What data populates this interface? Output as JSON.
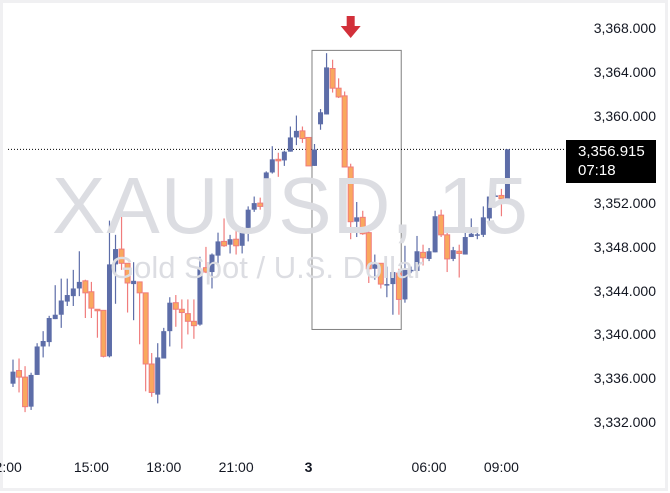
{
  "chart_data": {
    "type": "candlestick",
    "symbol": "XAUUSD, 15",
    "description": "Gold Spot / U.S. Dollar",
    "ylim": [
      3330.5,
      3369.5
    ],
    "y_ticks": [
      {
        "value": 3368,
        "label": "3,368.000"
      },
      {
        "value": 3364,
        "label": "3,364.000"
      },
      {
        "value": 3360,
        "label": "3,360.000"
      },
      {
        "value": 3352,
        "label": "3,352.000"
      },
      {
        "value": 3348,
        "label": "3,348.000"
      },
      {
        "value": 3344,
        "label": "3,344.000"
      },
      {
        "value": 3340,
        "label": "3,340.000"
      },
      {
        "value": 3336,
        "label": "3,336.000"
      },
      {
        "value": 3332,
        "label": "3,332.000"
      }
    ],
    "x_ticks": [
      {
        "index": -0.8,
        "label": "2:00",
        "bold": false
      },
      {
        "index": 13,
        "label": "15:00",
        "bold": false
      },
      {
        "index": 25,
        "label": "18:00",
        "bold": false
      },
      {
        "index": 37,
        "label": "21:00",
        "bold": false
      },
      {
        "index": 49,
        "label": "3",
        "bold": true
      },
      {
        "index": 69,
        "label": "06:00",
        "bold": false
      },
      {
        "index": 81,
        "label": "09:00",
        "bold": false
      }
    ],
    "last_price": {
      "value": 3356.915,
      "label": "3,356.915",
      "countdown": "07:18"
    },
    "colors": {
      "up": "#5d6da8",
      "down_body": "#f9a85e",
      "down_border": "#f07c7c",
      "price_box": "#000000",
      "marker": "#d2303a",
      "watermark": "#dcdde2"
    },
    "highlight_box": {
      "from_index": 49.5,
      "to_index": 64.3,
      "top": 3366.0,
      "bottom": 3340.5
    },
    "arrow_marker": {
      "index": 56,
      "direction": "down"
    },
    "candles": [
      [
        3335.5,
        3337.7,
        3335.2,
        3336.6
      ],
      [
        3336.7,
        3337.8,
        3334.7,
        3336.1
      ],
      [
        3336.1,
        3337.1,
        3332.9,
        3333.4
      ],
      [
        3333.4,
        3336.5,
        3333.1,
        3336.3
      ],
      [
        3336.3,
        3339.2,
        3336.3,
        3338.9
      ],
      [
        3338.9,
        3340.3,
        3337.9,
        3339.4
      ],
      [
        3339.3,
        3341.7,
        3338.9,
        3341.5
      ],
      [
        3341.4,
        3344.5,
        3341.4,
        3341.8
      ],
      [
        3341.8,
        3345.1,
        3340.6,
        3343.1
      ],
      [
        3343.0,
        3345.1,
        3342.6,
        3343.6
      ],
      [
        3343.5,
        3345.9,
        3342.6,
        3344.2
      ],
      [
        3344.2,
        3347.6,
        3343.5,
        3344.8
      ],
      [
        3344.9,
        3345.0,
        3341.5,
        3343.8
      ],
      [
        3343.9,
        3344.8,
        3341.5,
        3342.4
      ],
      [
        3342.3,
        3342.3,
        3339.7,
        3342.2
      ],
      [
        3342.2,
        3342.2,
        3337.9,
        3338.0
      ],
      [
        3338.0,
        3350.4,
        3337.9,
        3346.4
      ],
      [
        3346.4,
        3349.1,
        3342.8,
        3347.8
      ],
      [
        3347.8,
        3351.0,
        3345.9,
        3346.5
      ],
      [
        3346.5,
        3346.5,
        3342.0,
        3344.7
      ],
      [
        3344.6,
        3346.6,
        3341.3,
        3344.9
      ],
      [
        3344.8,
        3344.8,
        3339.1,
        3343.8
      ],
      [
        3343.8,
        3343.8,
        3334.8,
        3337.3
      ],
      [
        3337.3,
        3338.3,
        3334.3,
        3334.7
      ],
      [
        3334.5,
        3339.2,
        3333.7,
        3337.9
      ],
      [
        3337.8,
        3340.6,
        3337.8,
        3340.3
      ],
      [
        3340.3,
        3343.4,
        3338.9,
        3342.9
      ],
      [
        3342.9,
        3343.6,
        3340.7,
        3342.3
      ],
      [
        3342.3,
        3343.2,
        3338.7,
        3342.0
      ],
      [
        3341.9,
        3343.2,
        3340.0,
        3341.2
      ],
      [
        3341.2,
        3343.2,
        3339.6,
        3340.8
      ],
      [
        3340.9,
        3347.1,
        3340.8,
        3346.0
      ],
      [
        3346.1,
        3348.0,
        3345.6,
        3345.7
      ],
      [
        3345.7,
        3347.4,
        3344.2,
        3347.3
      ],
      [
        3347.2,
        3349.3,
        3346.2,
        3348.5
      ],
      [
        3348.5,
        3350.6,
        3348.0,
        3348.1
      ],
      [
        3348.2,
        3349.1,
        3347.4,
        3348.7
      ],
      [
        3348.7,
        3349.5,
        3347.3,
        3348.1
      ],
      [
        3348.1,
        3349.8,
        3347.4,
        3349.6
      ],
      [
        3349.5,
        3351.7,
        3348.5,
        3351.4
      ],
      [
        3351.4,
        3352.6,
        3351.2,
        3352.0
      ],
      [
        3352.0,
        3352.5,
        3351.4,
        3351.7
      ],
      [
        3351.6,
        3354.9,
        3351.6,
        3354.8
      ],
      [
        3354.8,
        3357.2,
        3354.7,
        3356.0
      ],
      [
        3356.0,
        3356.6,
        3354.4,
        3355.9
      ],
      [
        3355.9,
        3356.8,
        3355.4,
        3356.7
      ],
      [
        3356.7,
        3359.0,
        3356.7,
        3358.0
      ],
      [
        3358.0,
        3360.0,
        3357.3,
        3358.6
      ],
      [
        3358.6,
        3359.0,
        3357.5,
        3357.9
      ],
      [
        3358.0,
        3358.0,
        3355.4,
        3355.4
      ],
      [
        3355.4,
        3357.4,
        3355.4,
        3356.9
      ],
      [
        3359.2,
        3360.6,
        3358.7,
        3360.3
      ],
      [
        3360.1,
        3365.7,
        3360.1,
        3364.4
      ],
      [
        3364.3,
        3365.1,
        3362.1,
        3362.5
      ],
      [
        3362.5,
        3363.4,
        3361.6,
        3361.7
      ],
      [
        3361.8,
        3362.2,
        3355.3,
        3355.3
      ],
      [
        3355.3,
        3355.6,
        3348.7,
        3350.3
      ],
      [
        3350.3,
        3352.1,
        3348.9,
        3350.7
      ],
      [
        3350.7,
        3351.3,
        3349.1,
        3349.2
      ],
      [
        3349.3,
        3349.7,
        3344.7,
        3346.0
      ],
      [
        3346.0,
        3347.3,
        3345.0,
        3346.4
      ],
      [
        3346.5,
        3346.5,
        3344.2,
        3344.6
      ],
      [
        3344.55,
        3346.2,
        3343.4,
        3344.6
      ],
      [
        3344.6,
        3345.9,
        3341.8,
        3345.7
      ],
      [
        3345.6,
        3346.0,
        3341.8,
        3343.2
      ],
      [
        3343.2,
        3348.1,
        3342.9,
        3345.9
      ],
      [
        3345.8,
        3346.2,
        3345.6,
        3345.9
      ],
      [
        3345.8,
        3349.0,
        3345.7,
        3347.6
      ],
      [
        3347.5,
        3348.2,
        3346.3,
        3347.0
      ],
      [
        3346.9,
        3347.9,
        3346.7,
        3347.6
      ],
      [
        3347.5,
        3351.3,
        3347.5,
        3350.8
      ],
      [
        3350.9,
        3351.4,
        3348.9,
        3349.1
      ],
      [
        3349.1,
        3349.3,
        3345.7,
        3346.9
      ],
      [
        3346.9,
        3348.0,
        3346.7,
        3347.7
      ],
      [
        3347.6,
        3348.2,
        3345.2,
        3347.4
      ],
      [
        3347.3,
        3349.4,
        3347.3,
        3348.9
      ],
      [
        3348.9,
        3350.6,
        3348.9,
        3349.2
      ],
      [
        3349.1,
        3349.7,
        3348.7,
        3349.15
      ],
      [
        3349.1,
        3351.7,
        3348.9,
        3350.7
      ],
      [
        3350.6,
        3352.6,
        3350.0,
        3352.6
      ],
      [
        3352.6,
        3354.0,
        3352.6,
        3352.7
      ],
      [
        3352.7,
        3353.3,
        3350.8,
        3352.4
      ],
      [
        3352.4,
        3356.915,
        3352.4,
        3356.915
      ]
    ]
  }
}
